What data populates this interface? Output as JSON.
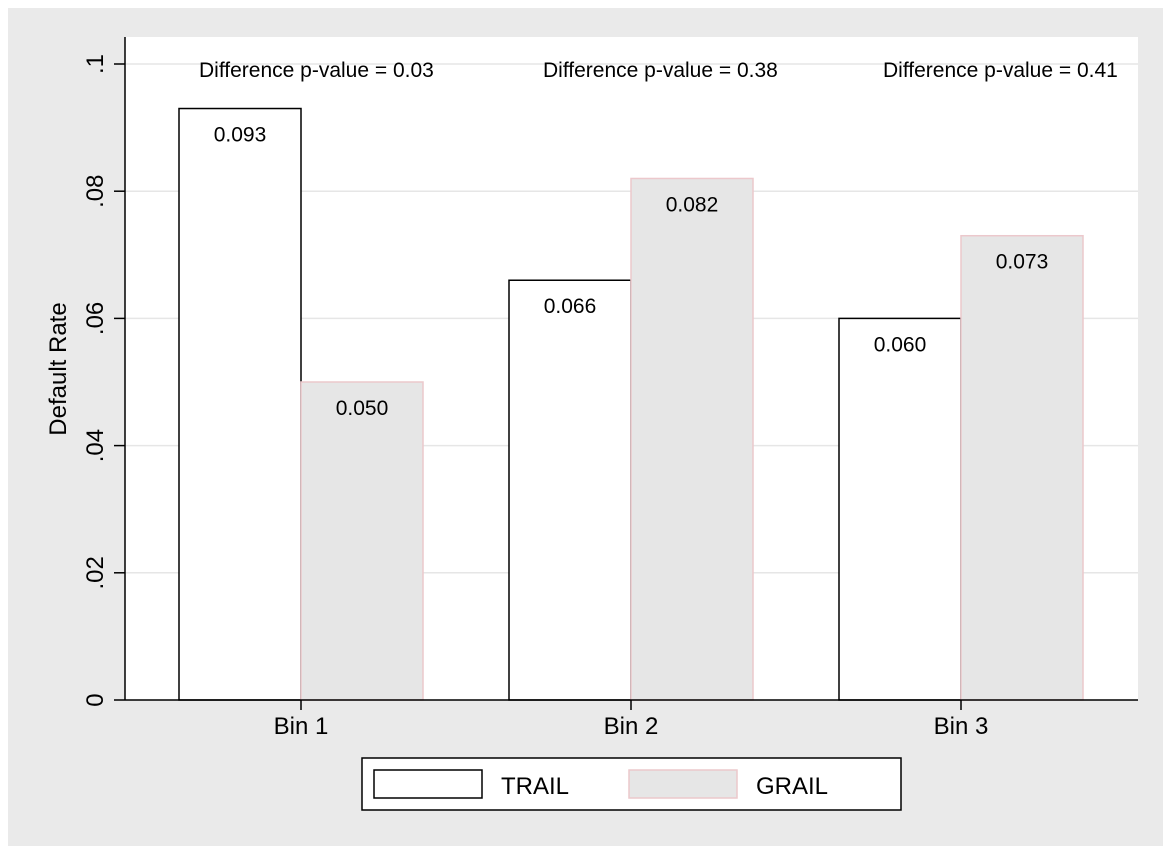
{
  "chart_data": {
    "type": "bar",
    "categories": [
      "Bin 1",
      "Bin 2",
      "Bin 3"
    ],
    "series": [
      {
        "name": "TRAIL",
        "values": [
          0.093,
          0.066,
          0.06
        ],
        "value_labels": [
          "0.093",
          "0.066",
          "0.060"
        ]
      },
      {
        "name": "GRAIL",
        "values": [
          0.05,
          0.082,
          0.073
        ],
        "value_labels": [
          "0.050",
          "0.082",
          "0.073"
        ]
      }
    ],
    "annotations": [
      "Difference p-value = 0.03",
      "Difference p-value = 0.38",
      "Difference p-value = 0.41"
    ],
    "title": "",
    "xlabel": "",
    "ylabel": "Default Rate",
    "ylim": [
      0,
      0.1
    ],
    "yticks": [
      0,
      0.02,
      0.04,
      0.06,
      0.08,
      0.1
    ],
    "ytick_labels": [
      "0",
      ".02",
      ".04",
      ".06",
      ".08",
      ".1"
    ],
    "grid": true,
    "legend_position": "bottom",
    "colors": {
      "outer_background": "#eaeaea",
      "plot_background": "#ffffff",
      "grid": "#e6e6e6",
      "trail_fill": "#ffffff",
      "trail_stroke": "#000000",
      "grail_fill": "#e6e6e6",
      "grail_stroke": "#ecc8cc"
    }
  }
}
